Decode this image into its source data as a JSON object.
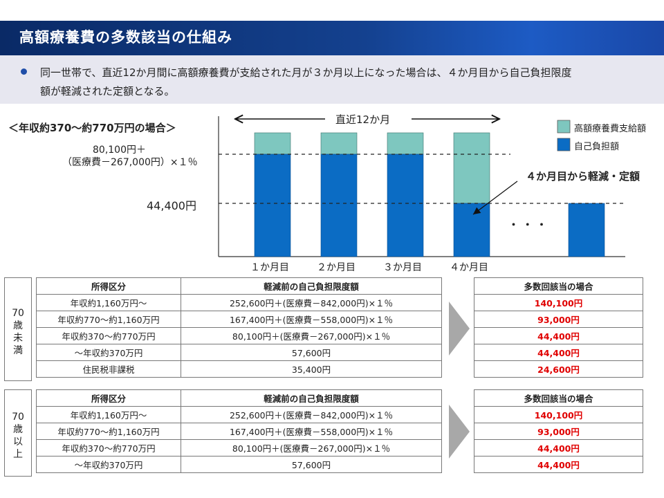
{
  "title": "高額療養費の多数該当の仕組み",
  "intro": {
    "line1": "同一世帯で、直近12か月間に高額療養費が支給された月が３か月以上になった場合は、４か月目から自己負担限度",
    "line2": "額が軽減された定額となる。"
  },
  "diagram": {
    "case_label": "＜年収約370～約770万円の場合＞",
    "formula_line1": "80,100円＋",
    "formula_line2": "（医療費－267,000円）×１％",
    "threshold_label": "44,400円",
    "period_label": "直近12か月",
    "reduction_label": "４か月目から軽減・定額",
    "ellipsis": "・ ・ ・",
    "legend": [
      {
        "label": "高額療養費支給額",
        "color": "#7ec7bf"
      },
      {
        "label": "自己負担額",
        "color": "#0b6cc4"
      }
    ],
    "bars": [
      {
        "month": "１か月目",
        "self_pay_level": "formula",
        "benefit": true
      },
      {
        "month": "２か月目",
        "self_pay_level": "formula",
        "benefit": true
      },
      {
        "month": "３か月目",
        "self_pay_level": "formula",
        "benefit": true
      },
      {
        "month": "４か月目",
        "self_pay_level": "44,400円",
        "benefit": true
      },
      {
        "month": "",
        "self_pay_level": "44,400円",
        "benefit": false
      }
    ],
    "colors": {
      "benefit": "#7ec7bf",
      "self_pay": "#0b6cc4"
    }
  },
  "table_under70": {
    "age_label": [
      "70",
      "歳",
      "未",
      "満"
    ],
    "headers": [
      "所得区分",
      "軽減前の自己負担限度額"
    ],
    "rows": [
      [
        "年収約1,160万円～",
        "252,600円＋(医療費－842,000円)×１％"
      ],
      [
        "年収約770～約1,160万円",
        "167,400円＋(医療費－558,000円)×１％"
      ],
      [
        "年収約370～約770万円",
        "80,100円＋(医療費－267,000円)×１％"
      ],
      [
        "～年収約370万円",
        "57,600円"
      ],
      [
        "住民税非課税",
        "35,400円"
      ]
    ],
    "result_header": "多数回該当の場合",
    "results": [
      "140,100円",
      "93,000円",
      "44,400円",
      "44,400円",
      "24,600円"
    ]
  },
  "table_over70": {
    "age_label": [
      "70",
      "歳",
      "以",
      "上"
    ],
    "headers": [
      "所得区分",
      "軽減前の自己負担限度額"
    ],
    "rows": [
      [
        "年収約1,160万円～",
        "252,600円＋(医療費－842,000円)×１％"
      ],
      [
        "年収約770～約1,160万円",
        "167,400円＋(医療費－558,000円)×１％"
      ],
      [
        "年収約370～約770万円",
        "80,100円＋(医療費－267,000円)×１％"
      ],
      [
        "～年収約370万円",
        "57,600円"
      ]
    ],
    "result_header": "多数回該当の場合",
    "results": [
      "140,100円",
      "93,000円",
      "44,400円",
      "44,400円"
    ]
  }
}
